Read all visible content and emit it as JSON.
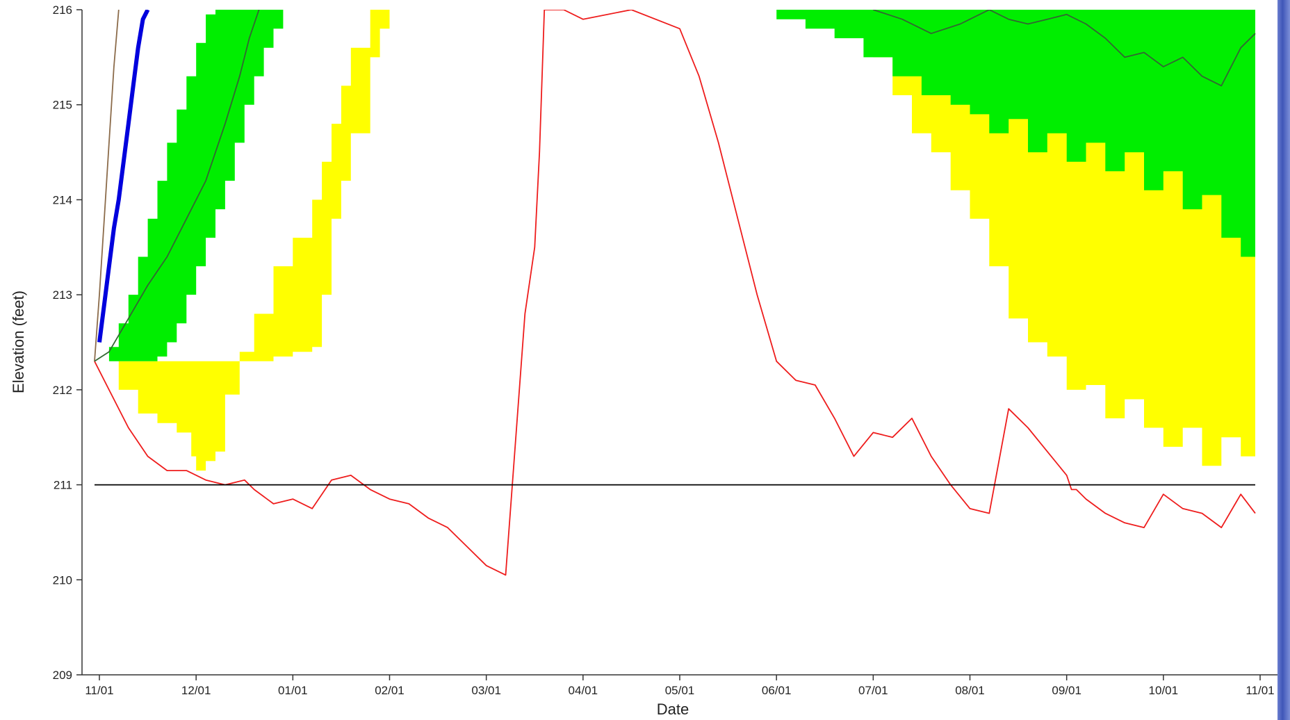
{
  "chart_data": {
    "type": "area",
    "title": "",
    "xlabel": "Date",
    "ylabel": "Elevation (feet)",
    "x_ticks": [
      "11/01",
      "12/01",
      "01/01",
      "02/01",
      "03/01",
      "04/01",
      "05/01",
      "06/01",
      "07/01",
      "08/01",
      "09/01",
      "10/01",
      "11/01"
    ],
    "y_ticks": [
      209,
      210,
      211,
      212,
      213,
      214,
      215,
      216
    ],
    "xlim": [
      -0.2,
      12.2
    ],
    "ylim": [
      209,
      216
    ],
    "grid": false,
    "colors": {
      "green_band": "#00ee00",
      "yellow_band": "#ffff00",
      "red_line": "#ee1c1c",
      "blue_line": "#0000dd",
      "brown_line": "#8b6b4a",
      "dark_line": "#336633",
      "ref_line": "#000000"
    },
    "series": [
      {
        "kind": "band",
        "color_key": "yellow_band",
        "x": [
          -0.05,
          0.2,
          0.4,
          0.6,
          0.8,
          0.95,
          1.0,
          1.1,
          1.2,
          1.3,
          1.45,
          1.6,
          1.8,
          2.0,
          2.2,
          2.3,
          2.4,
          2.5,
          2.6,
          2.8,
          2.9,
          3.0,
          3.1,
          3.2,
          3.3,
          3.5,
          3.7,
          4.0,
          4.5,
          5.0,
          5.5,
          6.0,
          6.5,
          7.0,
          7.5,
          7.8,
          8.0,
          8.2,
          8.4,
          8.6,
          8.8,
          9.0,
          9.2,
          9.4,
          9.6,
          9.8,
          10.0,
          10.2,
          10.4,
          10.6,
          10.8,
          11.0,
          11.2,
          11.4,
          11.6,
          11.8,
          11.95
        ],
        "y_low": [
          212.3,
          212.0,
          211.75,
          211.65,
          211.55,
          211.3,
          211.15,
          211.25,
          211.35,
          211.95,
          212.3,
          212.3,
          212.35,
          212.4,
          212.45,
          213.0,
          213.8,
          214.2,
          214.7,
          215.5,
          215.8,
          216.0,
          216.0,
          216.0,
          216.0,
          216.0,
          216.0,
          216.0,
          216.0,
          216.0,
          216.0,
          216.0,
          216.0,
          216.0,
          216.0,
          215.8,
          215.5,
          215.1,
          214.7,
          214.5,
          214.1,
          213.8,
          213.3,
          212.75,
          212.5,
          212.35,
          212.0,
          212.05,
          211.7,
          211.9,
          211.6,
          211.4,
          211.6,
          211.2,
          211.5,
          211.3,
          211.05
        ],
        "y_high": [
          212.3,
          212.3,
          212.3,
          212.3,
          212.3,
          212.3,
          212.3,
          212.3,
          212.3,
          212.3,
          212.4,
          212.8,
          213.3,
          213.6,
          214.0,
          214.4,
          214.8,
          215.2,
          215.6,
          216.0,
          216.0,
          216.0,
          216.0,
          216.0,
          216.0,
          216.0,
          216.0,
          216.0,
          216.0,
          216.0,
          216.0,
          216.0,
          216.0,
          216.0,
          216.0,
          216.0,
          216.0,
          216.0,
          216.0,
          216.0,
          216.0,
          216.0,
          216.0,
          216.0,
          216.0,
          216.0,
          216.0,
          216.0,
          216.0,
          216.0,
          216.0,
          216.0,
          216.0,
          216.0,
          216.0,
          216.0,
          216.0
        ]
      },
      {
        "kind": "band",
        "color_key": "green_band",
        "x": [
          -0.05,
          0.1,
          0.2,
          0.3,
          0.4,
          0.5,
          0.6,
          0.7,
          0.8,
          0.9,
          1.0,
          1.1,
          1.2,
          1.3,
          1.4,
          1.5,
          1.6,
          1.7,
          1.8,
          1.9,
          2.0,
          2.1,
          2.2,
          2.3,
          2.4,
          2.5,
          3.0,
          4.0,
          5.0,
          6.0,
          6.5,
          7.0,
          7.5,
          8.0,
          8.3,
          8.6,
          8.9,
          9.2,
          9.5,
          9.8,
          10.0,
          10.2,
          10.4,
          10.6,
          10.8,
          11.0,
          11.2,
          11.4,
          11.6,
          11.8,
          11.95
        ],
        "y_low": [
          212.3,
          212.45,
          212.7,
          213.0,
          213.4,
          213.8,
          214.2,
          214.6,
          214.95,
          215.3,
          215.65,
          215.95,
          216.0,
          216.0,
          216.0,
          216.0,
          216.0,
          216.0,
          216.0,
          216.0,
          216.0,
          216.0,
          216.0,
          216.0,
          216.0,
          216.0,
          216.0,
          216.0,
          216.0,
          216.0,
          216.0,
          216.0,
          216.0,
          216.0,
          216.0,
          216.0,
          216.0,
          216.0,
          216.0,
          216.0,
          216.0,
          216.0,
          216.0,
          216.0,
          216.0,
          216.0,
          216.0,
          216.0,
          216.0,
          216.0,
          216.0
        ],
        "y_high": [
          212.3,
          212.3,
          212.3,
          212.3,
          212.3,
          212.3,
          212.35,
          212.5,
          212.7,
          213.0,
          213.3,
          213.6,
          213.9,
          214.2,
          214.6,
          215.0,
          215.3,
          215.6,
          215.8,
          216.0,
          216.0,
          216.0,
          216.0,
          216.0,
          216.0,
          216.0,
          216.0,
          216.0,
          216.0,
          216.0,
          216.0,
          216.0,
          216.0,
          216.0,
          216.0,
          216.0,
          216.0,
          216.0,
          216.0,
          216.0,
          216.0,
          216.0,
          216.0,
          216.0,
          216.0,
          216.0,
          216.0,
          216.0,
          216.0,
          216.0,
          216.0
        ]
      },
      {
        "kind": "band",
        "color_key": "green_band",
        "x": [
          6.7,
          7.0,
          7.3,
          7.6,
          7.9,
          8.2,
          8.5,
          8.8,
          9.0,
          9.2,
          9.4,
          9.6,
          9.8,
          10.0,
          10.2,
          10.4,
          10.6,
          10.8,
          11.0,
          11.2,
          11.4,
          11.6,
          11.8,
          11.95
        ],
        "y_low": [
          216.0,
          216.0,
          216.0,
          216.0,
          216.0,
          216.0,
          216.0,
          216.0,
          216.0,
          216.0,
          216.0,
          216.0,
          216.0,
          216.0,
          216.0,
          216.0,
          216.0,
          216.0,
          216.0,
          216.0,
          216.0,
          216.0,
          216.0,
          216.0
        ],
        "y_high": [
          216.0,
          215.9,
          215.8,
          215.7,
          215.5,
          215.3,
          215.1,
          215.0,
          214.9,
          214.7,
          214.85,
          214.5,
          214.7,
          214.4,
          214.6,
          214.3,
          214.5,
          214.1,
          214.3,
          213.9,
          214.05,
          213.6,
          213.4,
          213.35
        ]
      },
      {
        "kind": "line",
        "color_key": "red_line",
        "x": [
          -0.05,
          0.1,
          0.3,
          0.5,
          0.7,
          0.9,
          1.1,
          1.3,
          1.5,
          1.6,
          1.8,
          2.0,
          2.2,
          2.4,
          2.6,
          2.8,
          3.0,
          3.2,
          3.4,
          3.6,
          3.8,
          4.0,
          4.2,
          4.4,
          4.5,
          4.55,
          4.6,
          4.7,
          4.8,
          5.0,
          5.5,
          6.0,
          6.2,
          6.4,
          6.6,
          6.8,
          7.0,
          7.2,
          7.4,
          7.6,
          7.8,
          8.0,
          8.2,
          8.4,
          8.6,
          8.8,
          9.0,
          9.2,
          9.4,
          9.6,
          9.8,
          10.0,
          10.05,
          10.1,
          10.2,
          10.4,
          10.6,
          10.8,
          11.0,
          11.2,
          11.4,
          11.6,
          11.8,
          11.95
        ],
        "y": [
          212.3,
          212.0,
          211.6,
          211.3,
          211.15,
          211.15,
          211.05,
          211.0,
          211.05,
          210.95,
          210.8,
          210.85,
          210.75,
          211.05,
          211.1,
          210.95,
          210.85,
          210.8,
          210.65,
          210.55,
          210.35,
          210.15,
          210.05,
          212.8,
          213.5,
          214.5,
          216.0,
          216.0,
          216.0,
          215.9,
          216.0,
          215.8,
          215.3,
          214.6,
          213.8,
          213.0,
          212.3,
          212.1,
          212.05,
          211.7,
          211.3,
          211.55,
          211.5,
          211.7,
          211.3,
          211.0,
          210.75,
          210.7,
          211.8,
          211.6,
          211.35,
          211.1,
          210.95,
          210.95,
          210.85,
          210.7,
          210.6,
          210.55,
          210.9,
          210.75,
          210.7,
          210.55,
          210.9,
          210.7
        ]
      },
      {
        "kind": "line",
        "color_key": "blue_line",
        "x": [
          0.0,
          0.05,
          0.1,
          0.15,
          0.2,
          0.25,
          0.3,
          0.35,
          0.4,
          0.45,
          0.5
        ],
        "y": [
          212.5,
          212.9,
          213.3,
          213.7,
          214.0,
          214.4,
          214.8,
          215.2,
          215.6,
          215.9,
          216.0
        ]
      },
      {
        "kind": "line",
        "color_key": "brown_line",
        "x": [
          -0.05,
          0.0,
          0.05,
          0.1,
          0.15,
          0.2
        ],
        "y": [
          212.3,
          213.0,
          213.8,
          214.6,
          215.4,
          216.0
        ]
      },
      {
        "kind": "line",
        "color_key": "dark_line",
        "x": [
          -0.05,
          0.1,
          0.3,
          0.5,
          0.7,
          0.9,
          1.1,
          1.3,
          1.45,
          1.55,
          1.65
        ],
        "y": [
          212.3,
          212.4,
          212.75,
          213.1,
          213.4,
          213.8,
          214.2,
          214.8,
          215.3,
          215.7,
          216.0
        ]
      },
      {
        "kind": "line",
        "color_key": "dark_line",
        "x": [
          8.0,
          8.3,
          8.6,
          8.9,
          9.2,
          9.4,
          9.6,
          9.8,
          10.0,
          10.2,
          10.4,
          10.6,
          10.8,
          11.0,
          11.2,
          11.4,
          11.6,
          11.8,
          11.95
        ],
        "y": [
          216.0,
          215.9,
          215.75,
          215.85,
          216.0,
          215.9,
          215.85,
          215.9,
          215.95,
          215.85,
          215.7,
          215.5,
          215.55,
          215.4,
          215.5,
          215.3,
          215.2,
          215.6,
          215.75
        ]
      },
      {
        "kind": "line",
        "color_key": "ref_line",
        "x": [
          -0.05,
          11.95
        ],
        "y": [
          211.0,
          211.0
        ]
      }
    ]
  }
}
